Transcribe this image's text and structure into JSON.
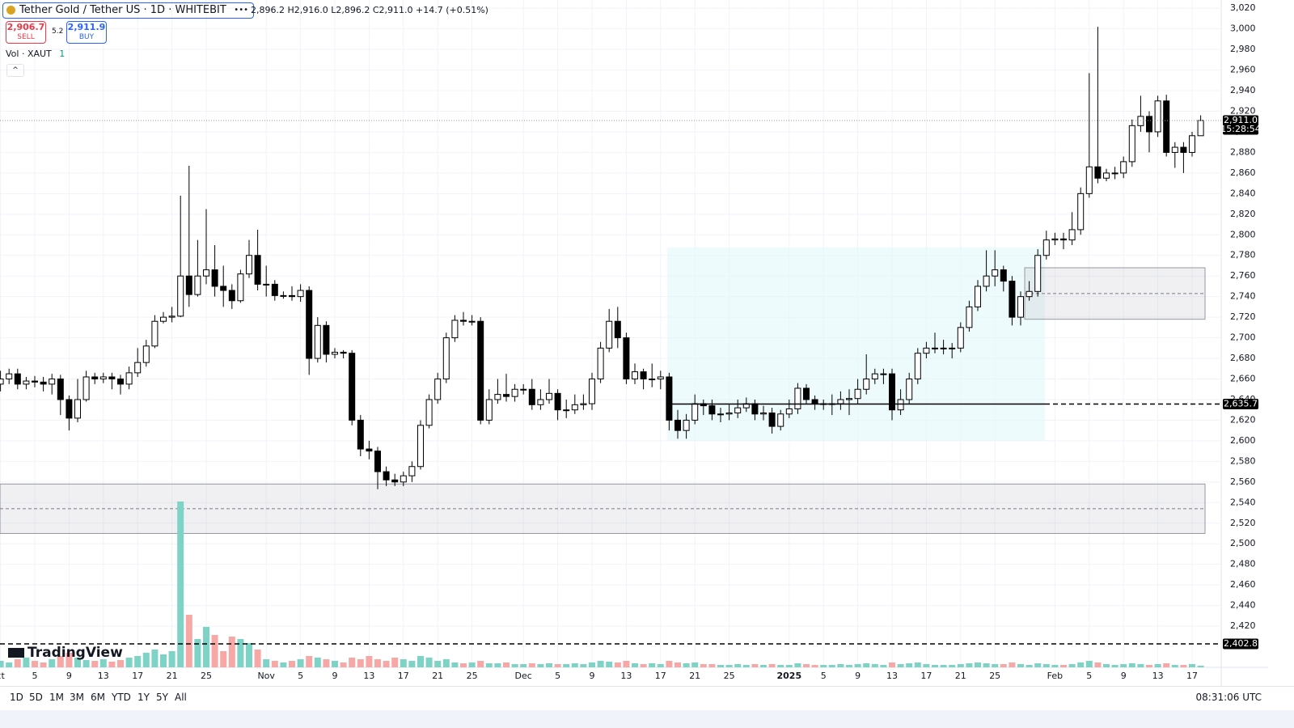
{
  "header": {
    "symbol": "Tether Gold / Tether US · 1D · WHITEBIT",
    "ohlc": "2,896.2 H2,916.0 L2,896.2 C2,911.0 +14.7 (+0.51%)",
    "sell_price": "2,906.7",
    "sell": "SELL",
    "spread": "5.2",
    "buy_price": "2,911.9",
    "buy": "BUY",
    "volume_label": "Vol · XAUT",
    "volume_value": "1"
  },
  "logo": "TradingView",
  "toolbar": {
    "timeframes": [
      "1D",
      "5D",
      "1M",
      "3M",
      "6M",
      "YTD",
      "1Y",
      "5Y",
      "All"
    ],
    "clock": "08:31:06 UTC"
  },
  "chart_data": {
    "type": "candlestick",
    "categories": [
      "ct",
      null,
      null,
      null,
      "5",
      null,
      null,
      null,
      "9",
      null,
      null,
      null,
      "13",
      null,
      null,
      null,
      "17",
      null,
      null,
      null,
      "21",
      null,
      null,
      null,
      "25",
      null,
      null,
      null,
      null,
      null,
      null,
      "Nov",
      null,
      null,
      null,
      "5",
      null,
      null,
      null,
      "9",
      null,
      null,
      null,
      "13",
      null,
      null,
      null,
      "17",
      null,
      null,
      null,
      "21",
      null,
      null,
      null,
      "25",
      null,
      null,
      null,
      null,
      null,
      "Dec",
      null,
      null,
      null,
      "5",
      null,
      null,
      null,
      "9",
      null,
      null,
      null,
      "13",
      null,
      null,
      null,
      "17",
      null,
      null,
      null,
      "21",
      null,
      null,
      null,
      "25",
      null,
      null,
      null,
      null,
      null,
      null,
      "2025",
      null,
      null,
      null,
      "5",
      null,
      null,
      null,
      "9",
      null,
      null,
      null,
      "13",
      null,
      null,
      null,
      "17",
      null,
      null,
      null,
      "21",
      null,
      null,
      null,
      "25",
      null,
      null,
      null,
      null,
      null,
      null,
      "Feb",
      null,
      null,
      null,
      "5",
      null,
      null,
      null,
      "9",
      null,
      null,
      null,
      "13",
      null,
      null,
      null,
      "17",
      null
    ],
    "open": [
      2655,
      2660,
      2665,
      2655,
      2658,
      2657,
      2655,
      2660,
      2640,
      2622,
      2640,
      2662,
      2660,
      2662,
      2660,
      2655,
      2666,
      2676,
      2692,
      2716,
      2720,
      2721,
      2760,
      2742,
      2760,
      2766,
      2750,
      2746,
      2736,
      2762,
      2780,
      2752,
      2752,
      2741,
      2741,
      2740,
      2746,
      2680,
      2712,
      2684,
      2686,
      2685,
      2620,
      2592,
      2590,
      2570,
      2562,
      2560,
      2566,
      2575,
      2615,
      2640,
      2660,
      2700,
      2717,
      2716,
      2716,
      2620,
      2640,
      2645,
      2643,
      2650,
      2650,
      2635,
      2640,
      2646,
      2630,
      2630,
      2635,
      2636,
      2660,
      2690,
      2716,
      2700,
      2660,
      2667,
      2660,
      2660,
      2662,
      2620,
      2610,
      2620,
      2636,
      2634,
      2626,
      2626,
      2627,
      2632,
      2636,
      2626,
      2627,
      2614,
      2626,
      2631,
      2651,
      2640,
      2636,
      2636,
      2636,
      2640,
      2641,
      2650,
      2660,
      2665,
      2665,
      2630,
      2640,
      2660,
      2685,
      2690,
      2690,
      2690,
      2690,
      2710,
      2730,
      2750,
      2760,
      2766,
      2755,
      2720,
      2740,
      2745,
      2780,
      2795,
      2796,
      2795,
      2805,
      2840,
      2866,
      2855,
      2860,
      2860,
      2871,
      2906,
      2915,
      2900,
      2930,
      2880,
      2885,
      2880,
      2896.2
    ],
    "high": [
      2668,
      2670,
      2670,
      2662,
      2663,
      2662,
      2665,
      2664,
      2644,
      2660,
      2668,
      2666,
      2666,
      2666,
      2664,
      2672,
      2690,
      2698,
      2722,
      2725,
      2730,
      2838,
      2867,
      2795,
      2825,
      2790,
      2770,
      2752,
      2766,
      2795,
      2805,
      2770,
      2756,
      2745,
      2750,
      2752,
      2750,
      2720,
      2716,
      2690,
      2688,
      2688,
      2625,
      2600,
      2594,
      2575,
      2568,
      2570,
      2580,
      2620,
      2645,
      2666,
      2705,
      2722,
      2725,
      2722,
      2720,
      2650,
      2660,
      2665,
      2655,
      2655,
      2660,
      2650,
      2660,
      2650,
      2640,
      2645,
      2645,
      2666,
      2696,
      2728,
      2730,
      2705,
      2675,
      2670,
      2675,
      2668,
      2666,
      2630,
      2626,
      2645,
      2640,
      2640,
      2632,
      2635,
      2640,
      2642,
      2640,
      2634,
      2632,
      2630,
      2640,
      2656,
      2655,
      2644,
      2640,
      2645,
      2648,
      2650,
      2660,
      2684,
      2670,
      2670,
      2670,
      2650,
      2666,
      2690,
      2696,
      2705,
      2698,
      2695,
      2715,
      2736,
      2756,
      2785,
      2785,
      2770,
      2760,
      2745,
      2755,
      2786,
      2804,
      2802,
      2802,
      2822,
      2846,
      2957,
      3002,
      2864,
      2866,
      2876,
      2912,
      2935,
      2920,
      2935,
      2936,
      2890,
      2890,
      2900,
      2916
    ],
    "low": [
      2648,
      2655,
      2650,
      2650,
      2652,
      2648,
      2645,
      2625,
      2610,
      2618,
      2638,
      2655,
      2656,
      2650,
      2645,
      2650,
      2662,
      2672,
      2690,
      2714,
      2715,
      2720,
      2730,
      2740,
      2752,
      2740,
      2730,
      2728,
      2734,
      2758,
      2746,
      2740,
      2736,
      2738,
      2736,
      2735,
      2664,
      2676,
      2676,
      2680,
      2680,
      2615,
      2585,
      2582,
      2553,
      2556,
      2556,
      2556,
      2560,
      2572,
      2612,
      2636,
      2656,
      2696,
      2712,
      2712,
      2616,
      2616,
      2636,
      2638,
      2638,
      2645,
      2630,
      2630,
      2636,
      2620,
      2622,
      2626,
      2630,
      2630,
      2656,
      2686,
      2690,
      2655,
      2655,
      2650,
      2652,
      2650,
      2610,
      2602,
      2602,
      2616,
      2625,
      2620,
      2618,
      2620,
      2622,
      2628,
      2620,
      2620,
      2607,
      2610,
      2622,
      2626,
      2636,
      2630,
      2630,
      2625,
      2630,
      2625,
      2636,
      2645,
      2655,
      2655,
      2620,
      2625,
      2636,
      2655,
      2680,
      2685,
      2684,
      2680,
      2686,
      2706,
      2726,
      2745,
      2750,
      2745,
      2712,
      2712,
      2736,
      2740,
      2776,
      2790,
      2786,
      2790,
      2800,
      2836,
      2850,
      2852,
      2854,
      2855,
      2866,
      2900,
      2880,
      2895,
      2876,
      2865,
      2860,
      2876,
      2896.2
    ],
    "close": [
      2660,
      2665,
      2655,
      2658,
      2657,
      2655,
      2660,
      2640,
      2622,
      2640,
      2662,
      2660,
      2662,
      2660,
      2655,
      2666,
      2676,
      2692,
      2716,
      2720,
      2721,
      2760,
      2742,
      2760,
      2766,
      2750,
      2746,
      2736,
      2762,
      2780,
      2752,
      2752,
      2741,
      2741,
      2740,
      2746,
      2680,
      2712,
      2684,
      2686,
      2685,
      2620,
      2592,
      2590,
      2570,
      2562,
      2560,
      2566,
      2575,
      2615,
      2640,
      2660,
      2700,
      2717,
      2716,
      2716,
      2620,
      2640,
      2645,
      2643,
      2650,
      2650,
      2635,
      2640,
      2646,
      2630,
      2630,
      2635,
      2636,
      2660,
      2690,
      2716,
      2700,
      2660,
      2667,
      2660,
      2660,
      2662,
      2620,
      2610,
      2620,
      2636,
      2634,
      2626,
      2626,
      2627,
      2632,
      2636,
      2626,
      2627,
      2614,
      2626,
      2631,
      2651,
      2640,
      2636,
      2636,
      2636,
      2640,
      2641,
      2650,
      2660,
      2665,
      2665,
      2630,
      2640,
      2660,
      2685,
      2690,
      2690,
      2690,
      2690,
      2710,
      2730,
      2750,
      2760,
      2766,
      2755,
      2720,
      2740,
      2745,
      2780,
      2795,
      2796,
      2795,
      2805,
      2840,
      2866,
      2855,
      2860,
      2860,
      2871,
      2906,
      2915,
      2900,
      2930,
      2880,
      2885,
      2880,
      2896.2,
      2911.0
    ],
    "volume": [
      8,
      6,
      10,
      12,
      8,
      6,
      10,
      14,
      18,
      12,
      9,
      8,
      10,
      7,
      9,
      12,
      14,
      18,
      22,
      16,
      20,
      205,
      65,
      35,
      50,
      40,
      20,
      38,
      35,
      30,
      22,
      10,
      8,
      6,
      8,
      10,
      14,
      12,
      10,
      8,
      6,
      12,
      10,
      14,
      10,
      8,
      12,
      10,
      8,
      14,
      12,
      8,
      10,
      6,
      5,
      6,
      8,
      5,
      5,
      6,
      4,
      4,
      5,
      4,
      5,
      4,
      4,
      5,
      4,
      6,
      8,
      7,
      6,
      8,
      5,
      4,
      5,
      4,
      8,
      6,
      5,
      6,
      4,
      4,
      3,
      3,
      4,
      3,
      4,
      3,
      4,
      3,
      3,
      5,
      4,
      3,
      3,
      3,
      4,
      3,
      4,
      5,
      4,
      3,
      6,
      4,
      5,
      6,
      4,
      3,
      3,
      3,
      4,
      5,
      6,
      5,
      4,
      4,
      6,
      4,
      3,
      5,
      4,
      3,
      3,
      4,
      6,
      8,
      6,
      4,
      3,
      4,
      5,
      4,
      3,
      4,
      5,
      3,
      3,
      4,
      2
    ],
    "up_color": "#ffffff",
    "down_color": "#000000",
    "volume_up_color": "#7dd3c5",
    "volume_down_color": "#f7a8a6",
    "ylim": [
      2380,
      3028
    ],
    "yticks": [
      {
        "value": 2420,
        "label": "2,420"
      },
      {
        "value": 2440,
        "label": "2,440"
      },
      {
        "value": 2460,
        "label": "2,460"
      },
      {
        "value": 2480,
        "label": "2,480"
      },
      {
        "value": 2500,
        "label": "2,500"
      },
      {
        "value": 2520,
        "label": "2,520"
      },
      {
        "value": 2540,
        "label": "2,540"
      },
      {
        "value": 2560,
        "label": "2,560"
      },
      {
        "value": 2580,
        "label": "2,580"
      },
      {
        "value": 2600,
        "label": "2,600"
      },
      {
        "value": 2620,
        "label": "2,620"
      },
      {
        "value": 2640,
        "label": "2,640"
      },
      {
        "value": 2660,
        "label": "2,660"
      },
      {
        "value": 2680,
        "label": "2,680"
      },
      {
        "value": 2700,
        "label": "2,700"
      },
      {
        "value": 2720,
        "label": "2,720"
      },
      {
        "value": 2740,
        "label": "2,740"
      },
      {
        "value": 2760,
        "label": "2,760"
      },
      {
        "value": 2780,
        "label": "2,780"
      },
      {
        "value": 2800,
        "label": "2,800"
      },
      {
        "value": 2820,
        "label": "2,820"
      },
      {
        "value": 2840,
        "label": "2,840"
      },
      {
        "value": 2860,
        "label": "2,860"
      },
      {
        "value": 2880,
        "label": "2,880"
      },
      {
        "value": 2900,
        "label": "2,900"
      },
      {
        "value": 2920,
        "label": "2,920"
      },
      {
        "value": 2940,
        "label": "2,940"
      },
      {
        "value": 2960,
        "label": "2,960"
      },
      {
        "value": 2980,
        "label": "2,980"
      },
      {
        "value": 3000,
        "label": "3,000"
      },
      {
        "value": 3020,
        "label": "3,020"
      }
    ],
    "grid": true,
    "zones": [
      {
        "from": 2510,
        "to": 2558
      },
      {
        "from": 2718,
        "to": 2768
      }
    ],
    "profile": {
      "from": 2600,
      "to": 2788
    },
    "price_lines": [
      {
        "value": 2911.0,
        "label": "2,911.0",
        "time": "15:28:54",
        "style": "dotted"
      },
      {
        "value": 2635.7,
        "label": "2,635.7",
        "style": "dashed"
      },
      {
        "value": 2402.8,
        "label": "2,402.8",
        "style": "dashed"
      }
    ]
  }
}
